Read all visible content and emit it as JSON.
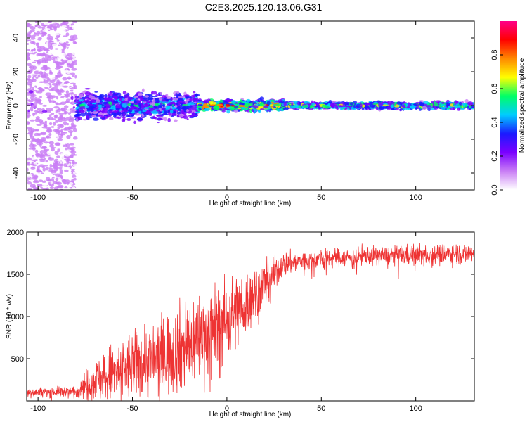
{
  "title": "C2E3.2025.120.13.06.G31",
  "chart_data": [
    {
      "type": "heatmap",
      "xlabel": "Height of straight line (km)",
      "ylabel": "Frequency (Hz)",
      "xlim": [
        -106,
        131
      ],
      "ylim": [
        -50,
        50
      ],
      "xticks": [
        -100,
        -50,
        0,
        50,
        100
      ],
      "yticks": [
        -40,
        -20,
        0,
        20,
        40
      ],
      "colorbar": {
        "label": "Normalized spectral amplitude",
        "range": [
          0,
          1
        ],
        "ticks": [
          "0.0",
          "0.2",
          "0.4",
          "0.6",
          "0.8"
        ],
        "colors": [
          "#ffffff",
          "#c97ef5",
          "#7b00ff",
          "#1a1aff",
          "#00ccff",
          "#00ff66",
          "#ffff00",
          "#ff8800",
          "#ff0000",
          "#ff0088"
        ]
      },
      "regions": [
        {
          "x": [
            -106,
            -80
          ],
          "freq_spread": 50,
          "amplitude": 0.15
        },
        {
          "x": [
            -80,
            -15
          ],
          "freq_spread": 8,
          "amplitude": 0.45
        },
        {
          "x": [
            -15,
            30
          ],
          "freq_spread": 3,
          "amplitude": 0.75
        },
        {
          "x": [
            30,
            131
          ],
          "freq_spread": 2,
          "amplitude": 0.6
        }
      ]
    },
    {
      "type": "line",
      "xlabel": "Height of straight line (km)",
      "ylabel": "SNR (10 * v/v)",
      "xlim": [
        -106,
        131
      ],
      "ylim": [
        0,
        2000
      ],
      "xticks": [
        -100,
        -50,
        0,
        50,
        100
      ],
      "yticks": [
        500,
        1000,
        1500,
        2000
      ],
      "line_color": "#ee3333",
      "trend": [
        {
          "x": -106,
          "y": 100,
          "noise": 50
        },
        {
          "x": -80,
          "y": 110,
          "noise": 60
        },
        {
          "x": -75,
          "y": 200,
          "noise": 150
        },
        {
          "x": -60,
          "y": 320,
          "noise": 350
        },
        {
          "x": -40,
          "y": 480,
          "noise": 400
        },
        {
          "x": -20,
          "y": 680,
          "noise": 500
        },
        {
          "x": 0,
          "y": 950,
          "noise": 450
        },
        {
          "x": 10,
          "y": 1150,
          "noise": 350
        },
        {
          "x": 20,
          "y": 1400,
          "noise": 250
        },
        {
          "x": 30,
          "y": 1620,
          "noise": 130
        },
        {
          "x": 50,
          "y": 1690,
          "noise": 100
        },
        {
          "x": 80,
          "y": 1720,
          "noise": 100
        },
        {
          "x": 131,
          "y": 1750,
          "noise": 120
        }
      ]
    }
  ]
}
